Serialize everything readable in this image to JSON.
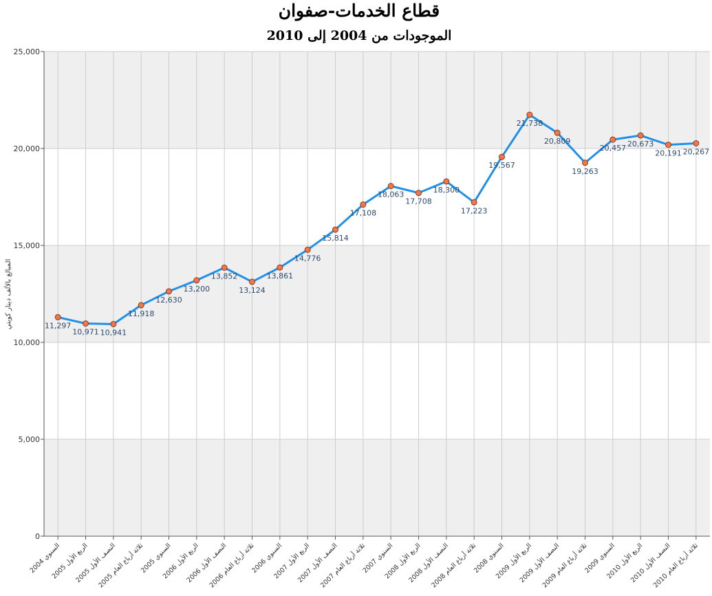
{
  "chart_data": {
    "type": "line",
    "title": "قطاع الخدمات-صفوان",
    "subtitle": "الموجودات من 2004 إلى 2010",
    "ylabel": "المبالغ بالألف دينار كويتي",
    "xlabel": "",
    "ylim": [
      0,
      25000
    ],
    "yticks": [
      "0",
      "5,000",
      "10,000",
      "15,000",
      "20,000",
      "25,000"
    ],
    "grid": true,
    "legend": "none",
    "colors": {
      "line": "#1E90E8",
      "marker": "#F07848",
      "marker_edge": "#8B3A1E",
      "band": "#EFEFEF",
      "grid": "#CCCCCC",
      "label": "#2C4A6E"
    },
    "categories": [
      "السنوي 2004",
      "الربع الأول 2005",
      "النصف الأول 2005",
      "ثلاثة أرباع العام 2005",
      "السنوي 2005",
      "الربع الأول 2006",
      "النصف الأول 2006",
      "ثلاثة أرباع العام 2006",
      "السنوي 2006",
      "الربع الأول 2007",
      "النصف الأول 2007",
      "ثلاثة أرباع العام 2007",
      "السنوي 2007",
      "الربع الأول 2008",
      "النصف الأول 2008",
      "ثلاثة أرباع العام 2008",
      "السنوي 2008",
      "الربع الأول 2009",
      "النصف الأول 2009",
      "ثلاثة أرباع العام 2009",
      "السنوي 2009",
      "الربع الأول 2010",
      "النصف الأول 2010",
      "ثلاثة أرباع العام 2010"
    ],
    "values": [
      11297,
      10971,
      10941,
      11918,
      12630,
      13200,
      13852,
      13124,
      13861,
      14776,
      15814,
      17108,
      18063,
      17708,
      18300,
      17223,
      19567,
      21738,
      20809,
      19263,
      20457,
      20673,
      20191,
      20267
    ],
    "data_labels": [
      "11,297",
      "10,971",
      "10,941",
      "11,918",
      "12,630",
      "13,200",
      "13,852",
      "13,124",
      "13,861",
      "14,776",
      "15,814",
      "17,108",
      "18,063",
      "17,708",
      "18,300",
      "17,223",
      "19,567",
      "21,738",
      "20,809",
      "19,263",
      "20,457",
      "20,673",
      "20,191",
      "20,267"
    ]
  }
}
